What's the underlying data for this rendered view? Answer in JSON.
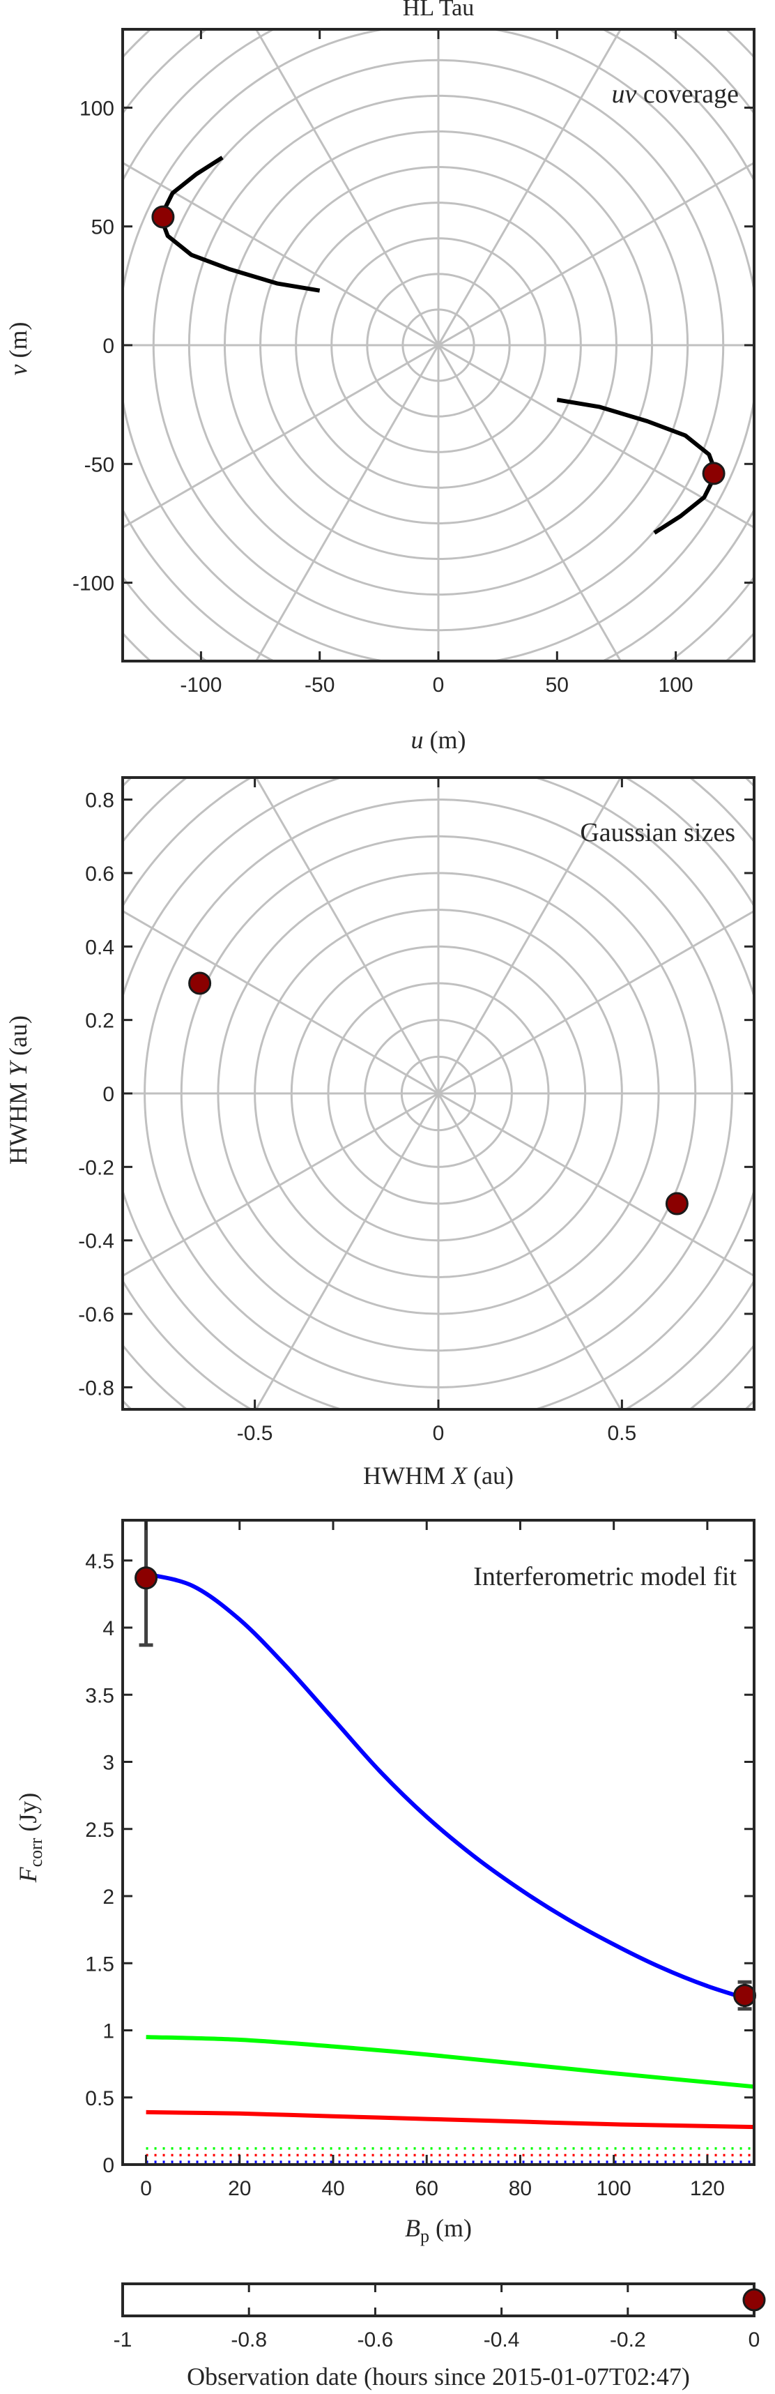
{
  "figure_title": "HL Tau",
  "colors": {
    "grid": "#c0c0c0",
    "axes": "#262626",
    "marker_fill": "#8b0000",
    "marker_edge": "#1a1a1a",
    "track": "#000000",
    "total_model": "#0000ff",
    "component_green": "#00ff00",
    "component_red": "#ff0000",
    "errorbar": "#404040"
  },
  "chart_data": [
    {
      "id": "uv",
      "type": "scatter",
      "annotation": "uv coverage",
      "xlabel": "u (m)",
      "ylabel": "v (m)",
      "xlim": [
        -133,
        133
      ],
      "ylim": [
        -133,
        133
      ],
      "xticks": [
        -100,
        -50,
        0,
        50,
        100
      ],
      "yticks": [
        -100,
        -50,
        0,
        50,
        100
      ],
      "polar_grid": true,
      "grid_ring_step": 15,
      "grid_spoke_step_deg": 30,
      "points": [
        {
          "u": -116,
          "v": 54
        },
        {
          "u": 116,
          "v": -54
        }
      ],
      "tracks": [
        [
          [
            -91,
            79
          ],
          [
            -102,
            72
          ],
          [
            -112,
            64
          ],
          [
            -117,
            54
          ],
          [
            -114,
            46
          ],
          [
            -104,
            38
          ],
          [
            -88,
            32
          ],
          [
            -68,
            26
          ],
          [
            -50,
            23
          ]
        ],
        [
          [
            91,
            -79
          ],
          [
            102,
            -72
          ],
          [
            112,
            -64
          ],
          [
            117,
            -54
          ],
          [
            114,
            -46
          ],
          [
            104,
            -38
          ],
          [
            88,
            -32
          ],
          [
            68,
            -26
          ],
          [
            50,
            -23
          ]
        ]
      ]
    },
    {
      "id": "sizes",
      "type": "scatter",
      "annotation": "Gaussian sizes",
      "xlabel": "HWHM X (au)",
      "ylabel": "HWHM Y (au)",
      "xlim": [
        -0.86,
        0.86
      ],
      "ylim": [
        -0.86,
        0.86
      ],
      "xticks": [
        -0.5,
        0,
        0.5
      ],
      "yticks": [
        -0.8,
        -0.6,
        -0.4,
        -0.2,
        0,
        0.2,
        0.4,
        0.6,
        0.8
      ],
      "polar_grid": true,
      "grid_ring_step": 0.1,
      "grid_spoke_step_deg": 30,
      "points": [
        {
          "x": -0.65,
          "y": 0.3
        },
        {
          "x": 0.65,
          "y": -0.3
        }
      ]
    },
    {
      "id": "fit",
      "type": "line",
      "annotation": "Interferometric model fit",
      "xlabel": "Bp (m)",
      "ylabel": "Fcorr (Jy)",
      "xlim": [
        -5,
        130
      ],
      "ylim": [
        0,
        4.8
      ],
      "xticks": [
        0,
        20,
        40,
        60,
        80,
        100,
        120
      ],
      "yticks": [
        0,
        0.5,
        1,
        1.5,
        2,
        2.5,
        3,
        3.5,
        4,
        4.5
      ],
      "series": [
        {
          "color": "blue",
          "x": [
            0,
            10,
            20,
            30,
            40,
            50,
            60,
            70,
            80,
            90,
            100,
            110,
            120,
            130
          ],
          "y": [
            4.4,
            4.31,
            4.06,
            3.71,
            3.32,
            2.93,
            2.59,
            2.3,
            2.05,
            1.83,
            1.64,
            1.47,
            1.33,
            1.22
          ]
        },
        {
          "color": "green",
          "x": [
            0,
            20,
            40,
            60,
            80,
            100,
            130
          ],
          "y": [
            0.95,
            0.93,
            0.88,
            0.82,
            0.75,
            0.68,
            0.58
          ]
        },
        {
          "color": "red",
          "x": [
            0,
            20,
            40,
            60,
            80,
            100,
            130
          ],
          "y": [
            0.39,
            0.38,
            0.36,
            0.34,
            0.32,
            0.3,
            0.28
          ]
        },
        {
          "color": "dotted-green",
          "x": [
            0,
            130
          ],
          "y": [
            0.12,
            0.12
          ]
        },
        {
          "color": "dotted-red",
          "x": [
            0,
            130
          ],
          "y": [
            0.07,
            0.07
          ]
        },
        {
          "color": "dotted-blue",
          "x": [
            0,
            130
          ],
          "y": [
            0.02,
            0.02
          ]
        }
      ],
      "points": [
        {
          "x": 0,
          "y": 4.37,
          "err": 0.5
        },
        {
          "x": 128,
          "y": 1.26,
          "err": 0.1
        }
      ]
    },
    {
      "id": "date",
      "type": "scatter",
      "xlabel": "Observation date (hours since 2015-01-07T02:47)",
      "xlim": [
        -1,
        0
      ],
      "xticks": [
        -1,
        -0.8,
        -0.6,
        -0.4,
        -0.2,
        0
      ],
      "points": [
        {
          "x": 0
        }
      ]
    }
  ]
}
